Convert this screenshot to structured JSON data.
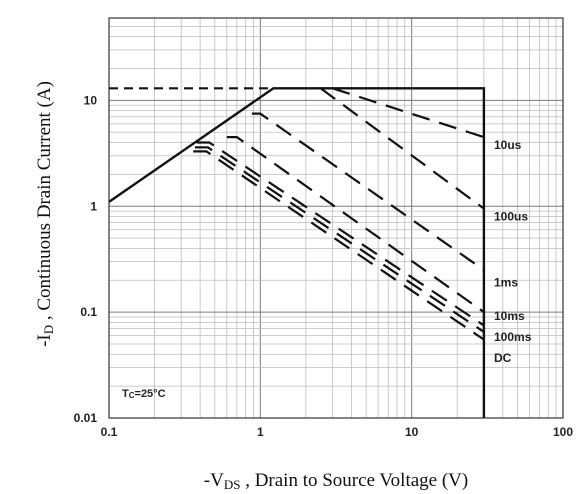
{
  "chart_data": {
    "type": "line",
    "title": "",
    "xscale": "log",
    "yscale": "log",
    "xlim": [
      0.1,
      100
    ],
    "ylim": [
      0.01,
      60
    ],
    "grid": true,
    "x_tick_labels": [
      "0.1",
      "1",
      "10",
      "100"
    ],
    "x_tick_values": [
      0.1,
      1,
      10,
      100
    ],
    "y_tick_labels": [
      "0.01",
      "0.1",
      "1",
      "10"
    ],
    "y_tick_values": [
      0.01,
      0.1,
      1,
      10
    ],
    "ylabel_main": "-I",
    "ylabel_sub": "D",
    "ylabel_rest": " , Continuous Drain Current (A)",
    "xlabel_main": "-V",
    "xlabel_sub": "DS",
    "xlabel_rest": " , Drain to Source Voltage (V)",
    "annotation_main": "T",
    "annotation_sub": "C",
    "annotation_rest": "=25°C",
    "boundary": {
      "style": "solid",
      "points": [
        [
          0.1,
          1.1
        ],
        [
          1.22,
          13
        ],
        [
          30,
          13
        ],
        [
          30,
          0.01
        ]
      ]
    },
    "current_limit": {
      "style": "dashed",
      "points": [
        [
          0.1,
          13
        ],
        [
          1.22,
          13
        ]
      ]
    },
    "series": [
      {
        "label": "10us",
        "style": "dashed",
        "points": [
          [
            3.0,
            13
          ],
          [
            30,
            4.5
          ]
        ]
      },
      {
        "label": "100us",
        "style": "dashed",
        "points": [
          [
            2.5,
            13
          ],
          [
            30,
            0.95
          ]
        ]
      },
      {
        "label": "1ms",
        "style": "dashed",
        "points": [
          [
            0.88,
            7.5
          ],
          [
            1.0,
            7.5
          ],
          [
            30,
            0.25
          ]
        ]
      },
      {
        "label": "10ms",
        "style": "dashed",
        "points": [
          [
            0.6,
            4.5
          ],
          [
            0.7,
            4.5
          ],
          [
            30,
            0.1
          ]
        ]
      },
      {
        "label": "100ms",
        "style": "dashed",
        "points": [
          [
            0.38,
            4.0
          ],
          [
            0.46,
            4.0
          ],
          [
            30,
            0.075
          ]
        ]
      },
      {
        "label": "DC",
        "style": "dashed",
        "points": [
          [
            0.36,
            3.3
          ],
          [
            0.44,
            3.3
          ],
          [
            30,
            0.055
          ]
        ]
      },
      {
        "label": "",
        "style": "dashed",
        "points": [
          [
            0.37,
            3.6
          ],
          [
            0.45,
            3.6
          ],
          [
            30,
            0.065
          ]
        ]
      }
    ],
    "curve_labels": [
      {
        "text": "10us",
        "x": 35,
        "y": 3.8
      },
      {
        "text": "100us",
        "x": 35,
        "y": 0.8
      },
      {
        "text": "1ms",
        "x": 35,
        "y": 0.19
      },
      {
        "text": "10ms",
        "x": 35,
        "y": 0.092
      },
      {
        "text": "100ms",
        "x": 35,
        "y": 0.058
      },
      {
        "text": "DC",
        "x": 35,
        "y": 0.037
      }
    ],
    "colors": {
      "grid": "#bdbdbd",
      "major_grid": "#7a7a7a",
      "line": "#111111",
      "frame": "#333333"
    }
  }
}
